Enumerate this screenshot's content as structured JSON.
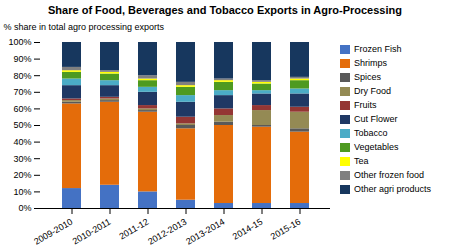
{
  "chart_data": {
    "type": "bar",
    "stacked": true,
    "title": "Share of Food, Beverages and Tobacco Exports in Agro-Processing",
    "ylabel": "% share in total agro processing exports",
    "categories": [
      "2009-2010",
      "2010-2011",
      "2011-12",
      "2012-2013",
      "2013-2014",
      "2014-15",
      "2015-16"
    ],
    "series": [
      {
        "name": "Frozen Fish",
        "color": "#4472c4",
        "values": [
          12,
          14,
          10,
          5,
          3,
          3,
          3
        ]
      },
      {
        "name": "Shrimps",
        "color": "#e46c0a",
        "values": [
          51,
          50,
          48,
          43,
          47,
          46,
          43
        ]
      },
      {
        "name": "Spices",
        "color": "#595959",
        "values": [
          1,
          1,
          1,
          2,
          2,
          1,
          2
        ]
      },
      {
        "name": "Dry Food",
        "color": "#948a54",
        "values": [
          1,
          1,
          1,
          1,
          4,
          9,
          10
        ]
      },
      {
        "name": "Fruits",
        "color": "#943634",
        "values": [
          1,
          1,
          2,
          4,
          4,
          3,
          3
        ]
      },
      {
        "name": "Cut Flower",
        "color": "#1f3864",
        "values": [
          8,
          7,
          8,
          9,
          8,
          7,
          8
        ]
      },
      {
        "name": "Tobacco",
        "color": "#4bacc6",
        "values": [
          4,
          3,
          3,
          4,
          3,
          2,
          3
        ]
      },
      {
        "name": "Vegetables",
        "color": "#4e9a20",
        "values": [
          4,
          4,
          4,
          5,
          5,
          4,
          5
        ]
      },
      {
        "name": "Tea",
        "color": "#ffff00",
        "values": [
          1,
          1,
          1,
          1,
          1,
          1,
          1
        ]
      },
      {
        "name": "Other frozen food",
        "color": "#808080",
        "values": [
          2,
          1,
          2,
          2,
          1,
          1,
          1
        ]
      },
      {
        "name": "Other agri products",
        "color": "#17375e",
        "values": [
          15,
          17,
          20,
          24,
          22,
          23,
          21
        ]
      }
    ],
    "ylim": [
      0,
      100
    ],
    "yticks": [
      {
        "value": 0,
        "label": "0%"
      },
      {
        "value": 10,
        "label": "10%"
      },
      {
        "value": 20,
        "label": "20%"
      },
      {
        "value": 30,
        "label": "30%"
      },
      {
        "value": 40,
        "label": "40%"
      },
      {
        "value": 50,
        "label": "50%"
      },
      {
        "value": 60,
        "label": "60%"
      },
      {
        "value": 70,
        "label": "70%"
      },
      {
        "value": 80,
        "label": "80%"
      },
      {
        "value": 90,
        "label": "90%"
      },
      {
        "value": 100,
        "label": "100%"
      }
    ],
    "grid": false,
    "legend": "right"
  }
}
